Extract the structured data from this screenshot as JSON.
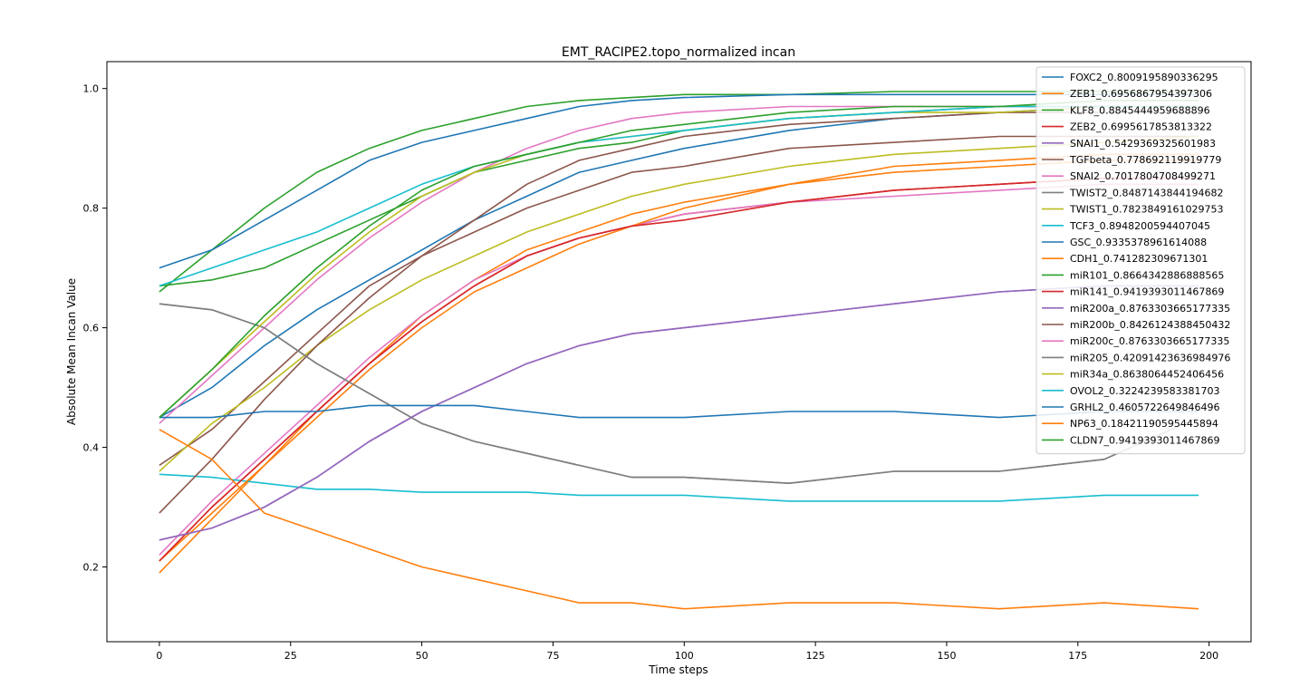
{
  "chart_data": {
    "type": "line",
    "title": "EMT_RACIPE2.topo_normalized incan",
    "xlabel": "Time steps",
    "ylabel": "Absolute Mean Incan Value",
    "xlim": [
      -10,
      208
    ],
    "ylim": [
      0.075,
      1.045
    ],
    "x_ticks": [
      0,
      25,
      50,
      75,
      100,
      125,
      150,
      175,
      200
    ],
    "y_ticks": [
      0.2,
      0.4,
      0.6,
      0.8,
      1.0
    ],
    "x_tick_labels": [
      "0",
      "25",
      "50",
      "75",
      "100",
      "125",
      "150",
      "175",
      "200"
    ],
    "y_tick_labels": [
      "0.2",
      "0.4",
      "0.6",
      "0.8",
      "1.0"
    ],
    "grid": false,
    "legend_position": "top-right",
    "series": [
      {
        "name": "FOXC2_0.8009195890336295",
        "color": "#1f77b4",
        "x": [
          0,
          10,
          20,
          30,
          40,
          50,
          60,
          70,
          80,
          90,
          100,
          120,
          140,
          160,
          180,
          198
        ],
        "values": [
          0.45,
          0.5,
          0.57,
          0.63,
          0.68,
          0.73,
          0.78,
          0.82,
          0.86,
          0.88,
          0.9,
          0.93,
          0.95,
          0.96,
          0.97,
          0.97
        ]
      },
      {
        "name": "ZEB1_0.6956867954397306",
        "color": "#ff7f0e",
        "x": [
          0,
          10,
          20,
          30,
          40,
          50,
          60,
          70,
          80,
          90,
          100,
          120,
          140,
          160,
          180,
          198
        ],
        "values": [
          0.19,
          0.28,
          0.37,
          0.46,
          0.54,
          0.62,
          0.68,
          0.73,
          0.76,
          0.79,
          0.81,
          0.84,
          0.86,
          0.87,
          0.88,
          0.88
        ]
      },
      {
        "name": "KLF8_0.8845444959688896",
        "color": "#2ca02c",
        "x": [
          0,
          10,
          20,
          30,
          40,
          50,
          60,
          70,
          80,
          90,
          100,
          120,
          140,
          160,
          180,
          198
        ],
        "values": [
          0.66,
          0.73,
          0.8,
          0.86,
          0.9,
          0.93,
          0.95,
          0.97,
          0.98,
          0.985,
          0.99,
          0.99,
          0.995,
          0.995,
          0.995,
          0.995
        ]
      },
      {
        "name": "ZEB2_0.6995617853813322",
        "color": "#d62728",
        "x": [
          0,
          10,
          20,
          30,
          40,
          50,
          60,
          70,
          80,
          90,
          100,
          120,
          140,
          160,
          180,
          198
        ],
        "values": [
          0.21,
          0.3,
          0.38,
          0.46,
          0.54,
          0.61,
          0.67,
          0.72,
          0.75,
          0.77,
          0.79,
          0.81,
          0.83,
          0.84,
          0.85,
          0.85
        ]
      },
      {
        "name": "SNAI1_0.5429369325601983",
        "color": "#9467bd",
        "x": [
          0,
          10,
          20,
          30,
          40,
          50,
          60,
          70,
          80,
          90,
          100,
          120,
          140,
          160,
          180,
          198
        ],
        "values": [
          0.245,
          0.265,
          0.3,
          0.35,
          0.41,
          0.46,
          0.5,
          0.54,
          0.57,
          0.59,
          0.6,
          0.62,
          0.64,
          0.66,
          0.67,
          0.67
        ]
      },
      {
        "name": "TGFbeta_0.778692119919779",
        "color": "#8c564b",
        "x": [
          0,
          10,
          20,
          30,
          40,
          50,
          60,
          70,
          80,
          90,
          100,
          120,
          140,
          160,
          180,
          198
        ],
        "values": [
          0.37,
          0.43,
          0.51,
          0.59,
          0.67,
          0.72,
          0.76,
          0.8,
          0.83,
          0.86,
          0.87,
          0.9,
          0.91,
          0.92,
          0.92,
          0.92
        ]
      },
      {
        "name": "SNAI2_0.7017804708499271",
        "color": "#e377c2",
        "x": [
          0,
          10,
          20,
          30,
          40,
          50,
          60,
          70,
          80,
          90,
          100,
          120,
          140,
          160,
          180,
          198
        ],
        "values": [
          0.22,
          0.31,
          0.39,
          0.47,
          0.55,
          0.62,
          0.68,
          0.72,
          0.75,
          0.77,
          0.79,
          0.81,
          0.82,
          0.83,
          0.84,
          0.84
        ]
      },
      {
        "name": "TWIST2_0.8487143844194682",
        "color": "#7f7f7f",
        "x": [
          0,
          10,
          20,
          30,
          40,
          50,
          60,
          70,
          80,
          90,
          100,
          120,
          140,
          160,
          180,
          198
        ],
        "values": [
          0.64,
          0.63,
          0.6,
          0.54,
          0.49,
          0.44,
          0.41,
          0.39,
          0.37,
          0.35,
          0.35,
          0.34,
          0.36,
          0.36,
          0.38,
          0.45
        ]
      },
      {
        "name": "TWIST1_0.7823849161029753",
        "color": "#bcbd22",
        "x": [
          0,
          10,
          20,
          30,
          40,
          50,
          60,
          70,
          80,
          90,
          100,
          120,
          140,
          160,
          180,
          198
        ],
        "values": [
          0.36,
          0.44,
          0.5,
          0.57,
          0.63,
          0.68,
          0.72,
          0.76,
          0.79,
          0.82,
          0.84,
          0.87,
          0.89,
          0.9,
          0.91,
          0.92
        ]
      },
      {
        "name": "TCF3_0.8948200594407045",
        "color": "#17becf",
        "x": [
          0,
          10,
          20,
          30,
          40,
          50,
          60,
          70,
          80,
          90,
          100,
          120,
          140,
          160,
          180,
          198
        ],
        "values": [
          0.355,
          0.35,
          0.34,
          0.33,
          0.33,
          0.325,
          0.325,
          0.325,
          0.32,
          0.32,
          0.32,
          0.31,
          0.31,
          0.31,
          0.32,
          0.32
        ]
      },
      {
        "name": "GSC_0.9335378961614088",
        "color": "#1f77b4",
        "x": [
          0,
          10,
          20,
          30,
          40,
          50,
          60,
          70,
          80,
          90,
          100,
          120,
          140,
          160,
          180,
          198
        ],
        "values": [
          0.7,
          0.73,
          0.78,
          0.83,
          0.88,
          0.91,
          0.93,
          0.95,
          0.97,
          0.98,
          0.985,
          0.99,
          0.99,
          0.99,
          0.99,
          0.99
        ]
      },
      {
        "name": "CDH1_0.741282309671301",
        "color": "#ff7f0e",
        "x": [
          0,
          10,
          20,
          30,
          40,
          50,
          60,
          70,
          80,
          90,
          100,
          120,
          140,
          160,
          180,
          198
        ],
        "values": [
          0.21,
          0.29,
          0.37,
          0.45,
          0.53,
          0.6,
          0.66,
          0.7,
          0.74,
          0.77,
          0.8,
          0.84,
          0.87,
          0.88,
          0.89,
          0.89
        ]
      },
      {
        "name": "miR101_0.8664342886888565",
        "color": "#2ca02c",
        "x": [
          0,
          10,
          20,
          30,
          40,
          50,
          60,
          70,
          80,
          90,
          100,
          120,
          140,
          160,
          180,
          198
        ],
        "values": [
          0.67,
          0.68,
          0.7,
          0.74,
          0.78,
          0.82,
          0.86,
          0.88,
          0.9,
          0.91,
          0.93,
          0.95,
          0.96,
          0.97,
          0.97,
          0.97
        ]
      },
      {
        "name": "miR141_0.9419393011467869",
        "color": "#d62728",
        "x": [
          0,
          10,
          20,
          30,
          40,
          50,
          60,
          70,
          80,
          90,
          100,
          120,
          140,
          160,
          180,
          198
        ],
        "values": [
          0.21,
          0.3,
          0.38,
          0.46,
          0.54,
          0.61,
          0.67,
          0.72,
          0.75,
          0.77,
          0.78,
          0.81,
          0.83,
          0.84,
          0.85,
          0.85
        ]
      },
      {
        "name": "miR200a_0.8763303665177335",
        "color": "#9467bd",
        "x": [
          0,
          10,
          20,
          30,
          40,
          50,
          60,
          70,
          80,
          90,
          100,
          120,
          140,
          160,
          180,
          198
        ],
        "values": [
          0.245,
          0.265,
          0.3,
          0.35,
          0.41,
          0.46,
          0.5,
          0.54,
          0.57,
          0.59,
          0.6,
          0.62,
          0.64,
          0.66,
          0.67,
          0.67
        ]
      },
      {
        "name": "miR200b_0.8426124388450432",
        "color": "#8c564b",
        "x": [
          0,
          10,
          20,
          30,
          40,
          50,
          60,
          70,
          80,
          90,
          100,
          120,
          140,
          160,
          180,
          198
        ],
        "values": [
          0.29,
          0.38,
          0.48,
          0.57,
          0.65,
          0.72,
          0.78,
          0.84,
          0.88,
          0.9,
          0.92,
          0.94,
          0.95,
          0.96,
          0.96,
          0.96
        ]
      },
      {
        "name": "miR200c_0.8763303665177335",
        "color": "#e377c2",
        "x": [
          0,
          10,
          20,
          30,
          40,
          50,
          60,
          70,
          80,
          90,
          100,
          120,
          140,
          160,
          180,
          198
        ],
        "values": [
          0.44,
          0.52,
          0.6,
          0.68,
          0.75,
          0.81,
          0.86,
          0.9,
          0.93,
          0.95,
          0.96,
          0.97,
          0.97,
          0.97,
          0.97,
          0.97
        ]
      },
      {
        "name": "miR205_0.42091423636984976",
        "color": "#7f7f7f",
        "x": [
          0,
          10,
          20,
          30,
          40,
          50,
          60,
          70,
          80,
          90,
          100,
          120,
          140,
          160,
          180,
          198
        ],
        "values": [
          0.64,
          0.63,
          0.6,
          0.54,
          0.49,
          0.44,
          0.41,
          0.39,
          0.37,
          0.35,
          0.35,
          0.34,
          0.36,
          0.36,
          0.38,
          0.45
        ]
      },
      {
        "name": "miR34a_0.8638064452406456",
        "color": "#bcbd22",
        "x": [
          0,
          10,
          20,
          30,
          40,
          50,
          60,
          70,
          80,
          90,
          100,
          120,
          140,
          160,
          180,
          198
        ],
        "values": [
          0.45,
          0.53,
          0.61,
          0.69,
          0.76,
          0.82,
          0.86,
          0.89,
          0.91,
          0.92,
          0.93,
          0.95,
          0.96,
          0.96,
          0.97,
          0.97
        ]
      },
      {
        "name": "OVOL2_0.3224239583381703",
        "color": "#17becf",
        "x": [
          0,
          10,
          20,
          30,
          40,
          50,
          60,
          70,
          80,
          90,
          100,
          120,
          140,
          160,
          180,
          198
        ],
        "values": [
          0.67,
          0.7,
          0.73,
          0.76,
          0.8,
          0.84,
          0.87,
          0.89,
          0.91,
          0.92,
          0.93,
          0.95,
          0.96,
          0.97,
          0.97,
          0.97
        ]
      },
      {
        "name": "GRHL2_0.4605722649846496",
        "color": "#1f77b4",
        "x": [
          0,
          10,
          20,
          30,
          40,
          50,
          60,
          70,
          80,
          90,
          100,
          120,
          140,
          160,
          180,
          198
        ],
        "values": [
          0.45,
          0.45,
          0.46,
          0.46,
          0.47,
          0.47,
          0.47,
          0.46,
          0.45,
          0.45,
          0.45,
          0.46,
          0.46,
          0.45,
          0.46,
          0.46
        ]
      },
      {
        "name": "NP63_0.18421190595445894",
        "color": "#ff7f0e",
        "x": [
          0,
          10,
          20,
          30,
          40,
          50,
          60,
          70,
          80,
          90,
          100,
          120,
          140,
          160,
          180,
          198
        ],
        "values": [
          0.43,
          0.38,
          0.29,
          0.26,
          0.23,
          0.2,
          0.18,
          0.16,
          0.14,
          0.14,
          0.13,
          0.14,
          0.14,
          0.13,
          0.14,
          0.13
        ]
      },
      {
        "name": "CLDN7_0.9419393011467869",
        "color": "#2ca02c",
        "x": [
          0,
          10,
          20,
          30,
          40,
          50,
          60,
          70,
          80,
          90,
          100,
          120,
          140,
          160,
          180,
          198
        ],
        "values": [
          0.45,
          0.53,
          0.62,
          0.7,
          0.77,
          0.83,
          0.87,
          0.89,
          0.91,
          0.93,
          0.94,
          0.96,
          0.97,
          0.97,
          0.98,
          0.98
        ]
      }
    ]
  }
}
